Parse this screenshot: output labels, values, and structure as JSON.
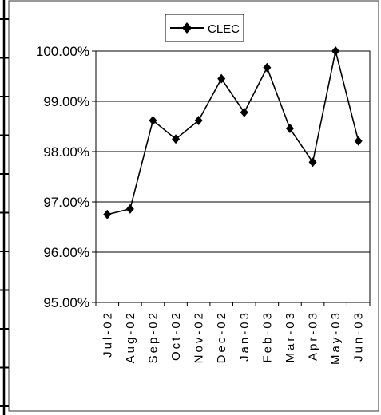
{
  "chart_data": {
    "type": "line",
    "title": "",
    "xlabel": "",
    "ylabel": "",
    "x": [
      "Jul-02",
      "Aug-02",
      "Sep-02",
      "Oct-02",
      "Nov-02",
      "Dec-02",
      "Jan-03",
      "Feb-03",
      "Mar-03",
      "Apr-03",
      "May-03",
      "Jun-03"
    ],
    "series": [
      {
        "name": "CLEC",
        "values": [
          96.75,
          96.86,
          98.62,
          98.25,
          98.62,
          99.45,
          98.78,
          99.67,
          98.46,
          97.79,
          100.0,
          98.21
        ],
        "color": "#000000",
        "marker": "diamond"
      }
    ],
    "ylim": [
      95,
      100
    ],
    "y_ticks": [
      95,
      96,
      97,
      98,
      99,
      100
    ],
    "y_tick_labels": [
      "95.00%",
      "96.00%",
      "97.00%",
      "98.00%",
      "99.00%",
      "100.00%"
    ],
    "grid": true,
    "legend_position": "top"
  }
}
